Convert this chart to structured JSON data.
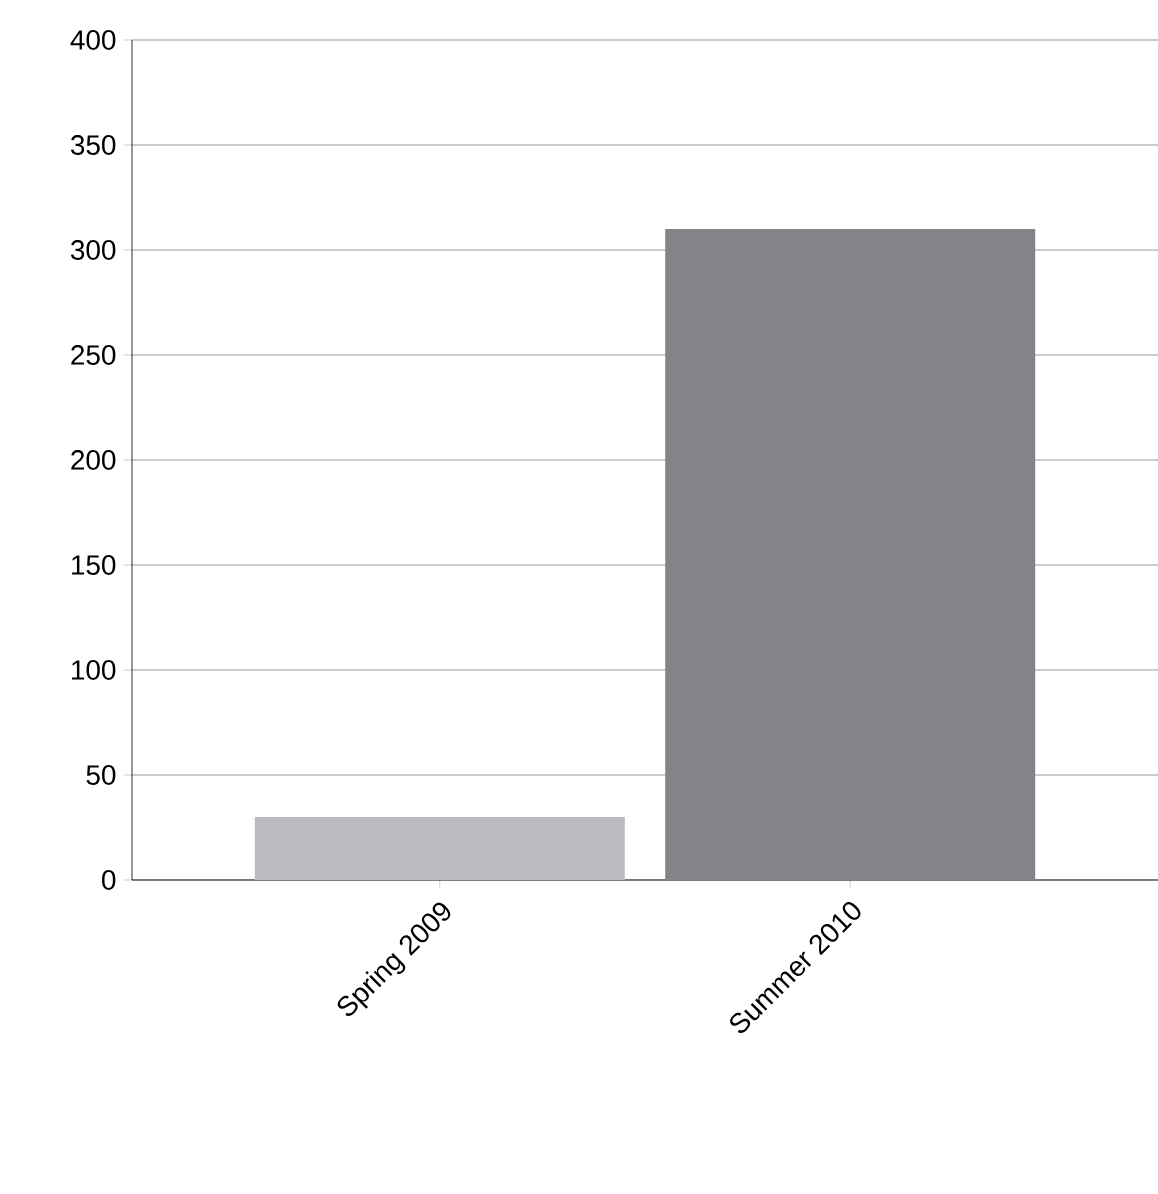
{
  "chart_data": {
    "type": "bar",
    "categories": [
      "Spring 2009",
      "Summer 2010"
    ],
    "values": [
      30,
      310
    ],
    "colors": [
      "#bbbcc0",
      "#838488"
    ],
    "ylim": [
      0,
      400
    ],
    "yticks": [
      0,
      50,
      100,
      150,
      200,
      250,
      300,
      350,
      400
    ],
    "grid": "y"
  }
}
